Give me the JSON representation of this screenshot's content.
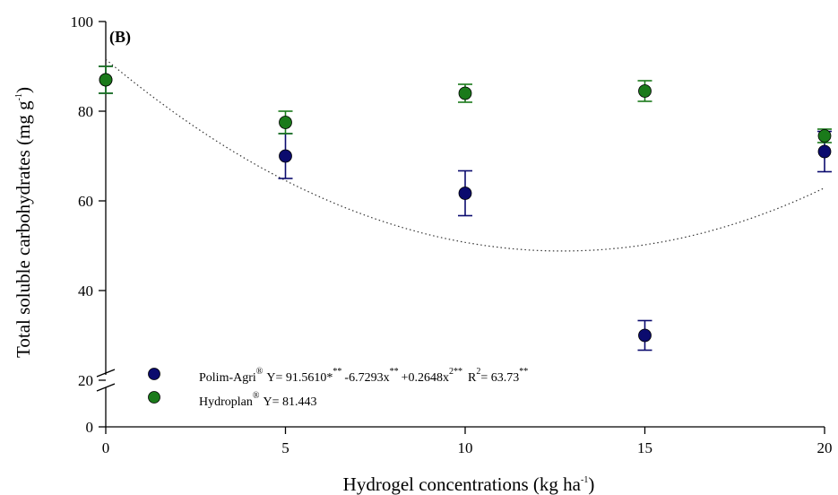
{
  "chart_data": {
    "type": "scatter",
    "panel_label": "(B)",
    "xlabel": "Hydrogel concentrations (kg ha",
    "xlabel_sup": "-1",
    "xlabel_end": ")",
    "ylabel": "Total soluble carbohydrates (mg g",
    "ylabel_sup": "-1",
    "ylabel_end": ")",
    "x_ticks": [
      "0",
      "5",
      "10",
      "15",
      "20"
    ],
    "y_ticks": [
      "0",
      "20",
      "40",
      "60",
      "80",
      "100"
    ],
    "xlim": [
      0,
      20
    ],
    "ylim_upper": [
      20,
      100
    ],
    "ylim_lower": [
      0,
      20
    ],
    "axis_break": true,
    "grid": false,
    "legend_position": "bottom-left",
    "series": [
      {
        "name": "Polim-Agri",
        "color": "#0b0b6e",
        "x": [
          0,
          5,
          10,
          15,
          20
        ],
        "y": [
          87.0,
          70.0,
          61.7,
          30.0,
          71.0
        ],
        "err": [
          3.0,
          5.0,
          5.0,
          3.3,
          4.5
        ],
        "equation": {
          "prefix": "Y= 91.5610*",
          "sup1": "**",
          "mid1": "-6.7293x",
          "sup2": "**",
          "mid2": "+0.2648x",
          "sup3": "2**",
          "mid3": "R",
          "sup4": "2",
          "mid4": "= 63.73",
          "sup5": "**"
        },
        "fit": {
          "type": "quadratic",
          "coefficients": [
            91.561,
            -6.7293,
            0.2648
          ]
        }
      },
      {
        "name": "Hydroplan",
        "color": "#1a7a1a",
        "x": [
          0,
          5,
          10,
          15,
          20
        ],
        "y": [
          87.0,
          77.5,
          84.0,
          84.5,
          74.5
        ],
        "err": [
          3.0,
          2.5,
          2.0,
          2.3,
          1.5
        ],
        "equation": {
          "prefix": "Y= 81.443"
        }
      }
    ],
    "registered_mark": "®"
  }
}
